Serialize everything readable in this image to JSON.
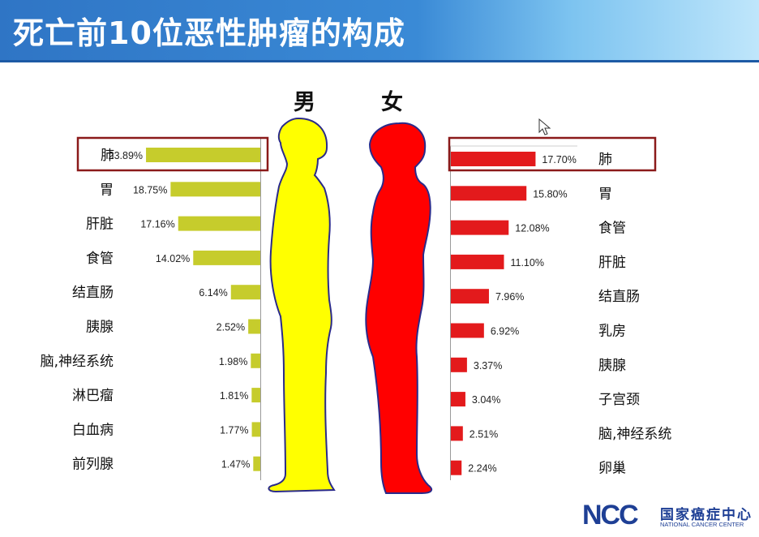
{
  "title": "死亡前10位恶性肿瘤的构成",
  "male_label": "男",
  "female_label": "女",
  "logo": {
    "letters": "NCC",
    "name_cn": "国家癌症中心",
    "name_en": "NATIONAL CANCER CENTER"
  },
  "colors": {
    "male_bar": "#c6cc2c",
    "female_bar": "#e31a1c",
    "male_body": "#ffff00",
    "female_body": "#ff0000",
    "body_outline": "#2a2a8a",
    "highlight_box": "#8b1a1a",
    "title_bar": "#2f75c5"
  },
  "icons": [
    "cursor-icon"
  ],
  "chart_data": [
    {
      "type": "bar",
      "orientation": "horizontal",
      "name_label": "男",
      "categories": [
        "肺",
        "胃",
        "肝脏",
        "食管",
        "结直肠",
        "胰腺",
        "脑,神经系统",
        "淋巴瘤",
        "白血病",
        "前列腺"
      ],
      "values": [
        23.89,
        18.75,
        17.16,
        14.02,
        6.14,
        2.52,
        1.98,
        1.81,
        1.77,
        1.47
      ],
      "labels": [
        "23.89%",
        "18.75%",
        "17.16%",
        "14.02%",
        "6.14%",
        "2.52%",
        "1.98%",
        "1.81%",
        "1.77%",
        "1.47%"
      ],
      "highlighted": "肺"
    },
    {
      "type": "bar",
      "orientation": "horizontal",
      "name_label": "女",
      "categories": [
        "肺",
        "胃",
        "食管",
        "肝脏",
        "结直肠",
        "乳房",
        "胰腺",
        "子宫颈",
        "脑,神经系统",
        "卵巢"
      ],
      "values": [
        17.7,
        15.8,
        12.08,
        11.1,
        7.96,
        6.92,
        3.37,
        3.04,
        2.51,
        2.24
      ],
      "labels": [
        "17.70%",
        "15.80%",
        "12.08%",
        "11.10%",
        "7.96%",
        "6.92%",
        "3.37%",
        "3.04%",
        "2.51%",
        "2.24%"
      ],
      "highlighted": "肺"
    }
  ]
}
